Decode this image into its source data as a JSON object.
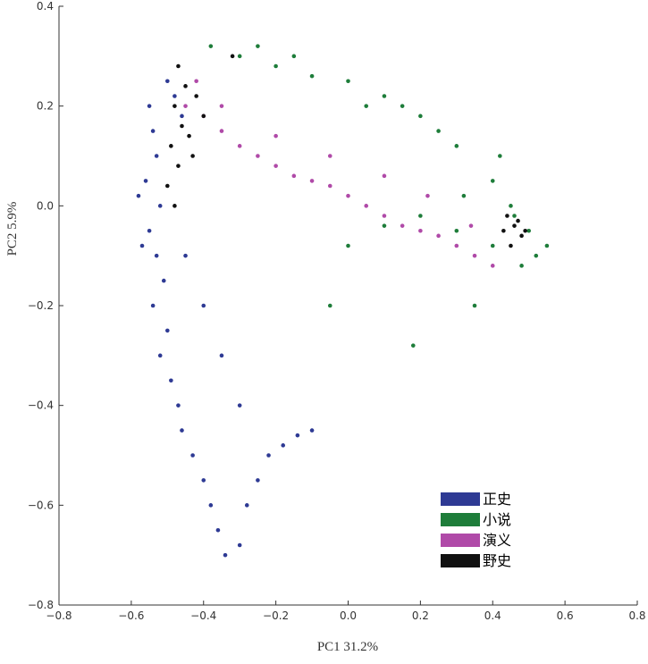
{
  "chart_data": {
    "type": "scatter",
    "title": "",
    "xlabel": "PC1 31.2%",
    "ylabel": "PC2 5.9%",
    "xlim": [
      -0.8,
      0.8
    ],
    "ylim": [
      -0.8,
      0.4
    ],
    "x_ticks": [
      "−0.8",
      "−0.6",
      "−0.4",
      "−0.2",
      "0.0",
      "0.2",
      "0.4",
      "0.6",
      "0.8"
    ],
    "y_ticks": [
      "0.4",
      "0.2",
      "0.0",
      "−0.2",
      "−0.4",
      "−0.6",
      "−0.8"
    ],
    "grid": false,
    "legend_position": "bottom-right",
    "series": [
      {
        "name": "正史",
        "color": "#2e3a94",
        "points": [
          [
            -0.55,
            0.2
          ],
          [
            -0.54,
            0.15
          ],
          [
            -0.53,
            0.1
          ],
          [
            -0.56,
            0.05
          ],
          [
            -0.52,
            0.0
          ],
          [
            -0.55,
            -0.05
          ],
          [
            -0.53,
            -0.1
          ],
          [
            -0.51,
            -0.15
          ],
          [
            -0.54,
            -0.2
          ],
          [
            -0.5,
            -0.25
          ],
          [
            -0.52,
            -0.3
          ],
          [
            -0.49,
            -0.35
          ],
          [
            -0.47,
            -0.4
          ],
          [
            -0.46,
            -0.45
          ],
          [
            -0.43,
            -0.5
          ],
          [
            -0.4,
            -0.55
          ],
          [
            -0.38,
            -0.6
          ],
          [
            -0.36,
            -0.65
          ],
          [
            -0.34,
            -0.7
          ],
          [
            -0.3,
            -0.68
          ],
          [
            -0.28,
            -0.6
          ],
          [
            -0.25,
            -0.55
          ],
          [
            -0.22,
            -0.5
          ],
          [
            -0.18,
            -0.48
          ],
          [
            -0.14,
            -0.46
          ],
          [
            -0.1,
            -0.45
          ],
          [
            -0.3,
            -0.4
          ],
          [
            -0.35,
            -0.3
          ],
          [
            -0.4,
            -0.2
          ],
          [
            -0.45,
            -0.1
          ],
          [
            -0.5,
            0.25
          ],
          [
            -0.48,
            0.22
          ],
          [
            -0.46,
            0.18
          ],
          [
            -0.58,
            0.02
          ],
          [
            -0.57,
            -0.08
          ]
        ]
      },
      {
        "name": "小说",
        "color": "#1e7d3a",
        "points": [
          [
            -0.38,
            0.32
          ],
          [
            -0.3,
            0.3
          ],
          [
            -0.2,
            0.28
          ],
          [
            -0.1,
            0.26
          ],
          [
            0.0,
            0.25
          ],
          [
            0.1,
            0.22
          ],
          [
            0.2,
            0.18
          ],
          [
            0.3,
            0.12
          ],
          [
            0.4,
            0.05
          ],
          [
            0.45,
            0.0
          ],
          [
            0.5,
            -0.05
          ],
          [
            0.52,
            -0.1
          ],
          [
            0.48,
            -0.12
          ],
          [
            0.4,
            -0.08
          ],
          [
            0.3,
            -0.05
          ],
          [
            0.2,
            -0.02
          ],
          [
            0.1,
            -0.04
          ],
          [
            0.0,
            -0.08
          ],
          [
            -0.05,
            -0.2
          ],
          [
            0.18,
            -0.28
          ],
          [
            0.35,
            -0.2
          ],
          [
            0.55,
            -0.08
          ],
          [
            0.42,
            0.1
          ],
          [
            0.25,
            0.15
          ],
          [
            0.15,
            0.2
          ],
          [
            -0.25,
            0.32
          ],
          [
            -0.15,
            0.3
          ],
          [
            0.05,
            0.2
          ],
          [
            0.32,
            0.02
          ],
          [
            0.46,
            -0.02
          ]
        ]
      },
      {
        "name": "演义",
        "color": "#b04aa8",
        "points": [
          [
            -0.45,
            0.2
          ],
          [
            -0.4,
            0.18
          ],
          [
            -0.35,
            0.15
          ],
          [
            -0.3,
            0.12
          ],
          [
            -0.25,
            0.1
          ],
          [
            -0.2,
            0.08
          ],
          [
            -0.15,
            0.06
          ],
          [
            -0.1,
            0.05
          ],
          [
            -0.05,
            0.04
          ],
          [
            0.0,
            0.02
          ],
          [
            0.05,
            0.0
          ],
          [
            0.1,
            -0.02
          ],
          [
            0.15,
            -0.04
          ],
          [
            0.2,
            -0.05
          ],
          [
            0.25,
            -0.06
          ],
          [
            0.3,
            -0.08
          ],
          [
            0.35,
            -0.1
          ],
          [
            0.4,
            -0.12
          ],
          [
            -0.42,
            0.25
          ],
          [
            -0.35,
            0.2
          ],
          [
            -0.2,
            0.14
          ],
          [
            -0.05,
            0.1
          ],
          [
            0.1,
            0.06
          ],
          [
            0.22,
            0.02
          ],
          [
            0.34,
            -0.04
          ]
        ]
      },
      {
        "name": "野史",
        "color": "#111111",
        "points": [
          [
            -0.47,
            0.28
          ],
          [
            -0.45,
            0.24
          ],
          [
            -0.48,
            0.2
          ],
          [
            -0.46,
            0.16
          ],
          [
            -0.49,
            0.12
          ],
          [
            -0.47,
            0.08
          ],
          [
            -0.5,
            0.04
          ],
          [
            -0.48,
            0.0
          ],
          [
            -0.44,
            0.14
          ],
          [
            -0.42,
            0.22
          ],
          [
            -0.4,
            0.18
          ],
          [
            -0.43,
            0.1
          ],
          [
            -0.32,
            0.3
          ],
          [
            0.44,
            -0.02
          ],
          [
            0.46,
            -0.04
          ],
          [
            0.48,
            -0.06
          ],
          [
            0.45,
            -0.08
          ],
          [
            0.47,
            -0.03
          ],
          [
            0.43,
            -0.05
          ],
          [
            0.49,
            -0.05
          ]
        ]
      }
    ]
  }
}
